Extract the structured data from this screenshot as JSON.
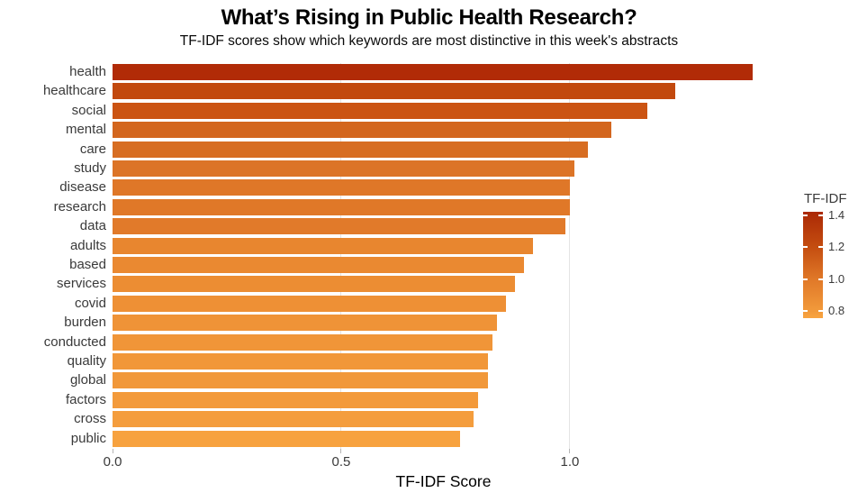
{
  "page": {
    "background_color": "#ffffff"
  },
  "chart_data": {
    "type": "bar",
    "orientation": "horizontal",
    "title": "What’s Rising in Public Health Research?",
    "subtitle": "TF-IDF scores show which keywords are most distinctive in this week's abstracts",
    "xlabel": "TF-IDF Score",
    "ylabel": "",
    "x_tick_labels": [
      "0.0",
      "0.5",
      "1.0"
    ],
    "x_tick_values": [
      0.0,
      0.5,
      1.0
    ],
    "xlim": [
      0,
      1.447
    ],
    "grid": "vertical light-gray gridlines at 0.5 and 1.0, behind bars",
    "categories": [
      "health",
      "healthcare",
      "social",
      "mental",
      "care",
      "study",
      "disease",
      "research",
      "data",
      "adults",
      "based",
      "services",
      "covid",
      "burden",
      "conducted",
      "quality",
      "global",
      "factors",
      "cross",
      "public"
    ],
    "values": [
      1.4,
      1.23,
      1.17,
      1.09,
      1.04,
      1.01,
      1.0,
      1.0,
      0.99,
      0.92,
      0.9,
      0.88,
      0.86,
      0.84,
      0.83,
      0.82,
      0.82,
      0.8,
      0.79,
      0.76
    ],
    "bar_colors": [
      "#b12b07",
      "#c2490e",
      "#cb5413",
      "#d3661e",
      "#d76d22",
      "#dc7427",
      "#df7728",
      "#e07828",
      "#e17a2a",
      "#e8862f",
      "#ea8931",
      "#ec8d33",
      "#ee9035",
      "#ef9337",
      "#f09538",
      "#f19739",
      "#f1983a",
      "#f39a3b",
      "#f49d3d",
      "#f7a23f"
    ],
    "legend": {
      "title": "TF-IDF",
      "position": "right",
      "tick_labels": [
        "1.4",
        "1.2",
        "1.0",
        "0.8"
      ],
      "tick_values": [
        1.4,
        1.2,
        1.0,
        0.8
      ],
      "value_range_top_to_bottom": [
        1.42,
        0.756
      ],
      "gradient_stops": [
        {
          "value": 1.42,
          "color": "#ab2906"
        },
        {
          "value": 1.2,
          "color": "#c44d10"
        },
        {
          "value": 1.0,
          "color": "#e07828"
        },
        {
          "value": 0.8,
          "color": "#f29a3b"
        },
        {
          "value": 0.756,
          "color": "#f8a440"
        }
      ]
    }
  }
}
